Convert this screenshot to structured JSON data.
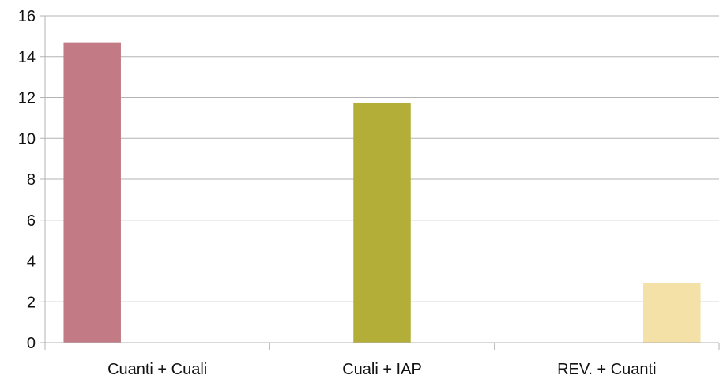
{
  "chart_data": {
    "type": "bar",
    "categories": [
      "Cuanti + Cuali",
      "Cuali + IAP",
      "REV. + Cuanti"
    ],
    "series": [
      {
        "values": [
          14.7,
          null,
          null
        ],
        "color": "#c27b85"
      },
      {
        "values": [
          null,
          11.75,
          null
        ],
        "color": "#b3ae37"
      },
      {
        "values": [
          null,
          null,
          2.9
        ],
        "color": "#f3e1a8"
      }
    ],
    "title": "",
    "xlabel": "",
    "ylabel": "",
    "ylim": [
      0,
      16
    ],
    "yticks": [
      0,
      2,
      4,
      6,
      8,
      10,
      12,
      14,
      16
    ],
    "grid": true,
    "legend": "none",
    "gridline_color": "#b3b3b3",
    "axis_color": "#b3b3b3"
  }
}
